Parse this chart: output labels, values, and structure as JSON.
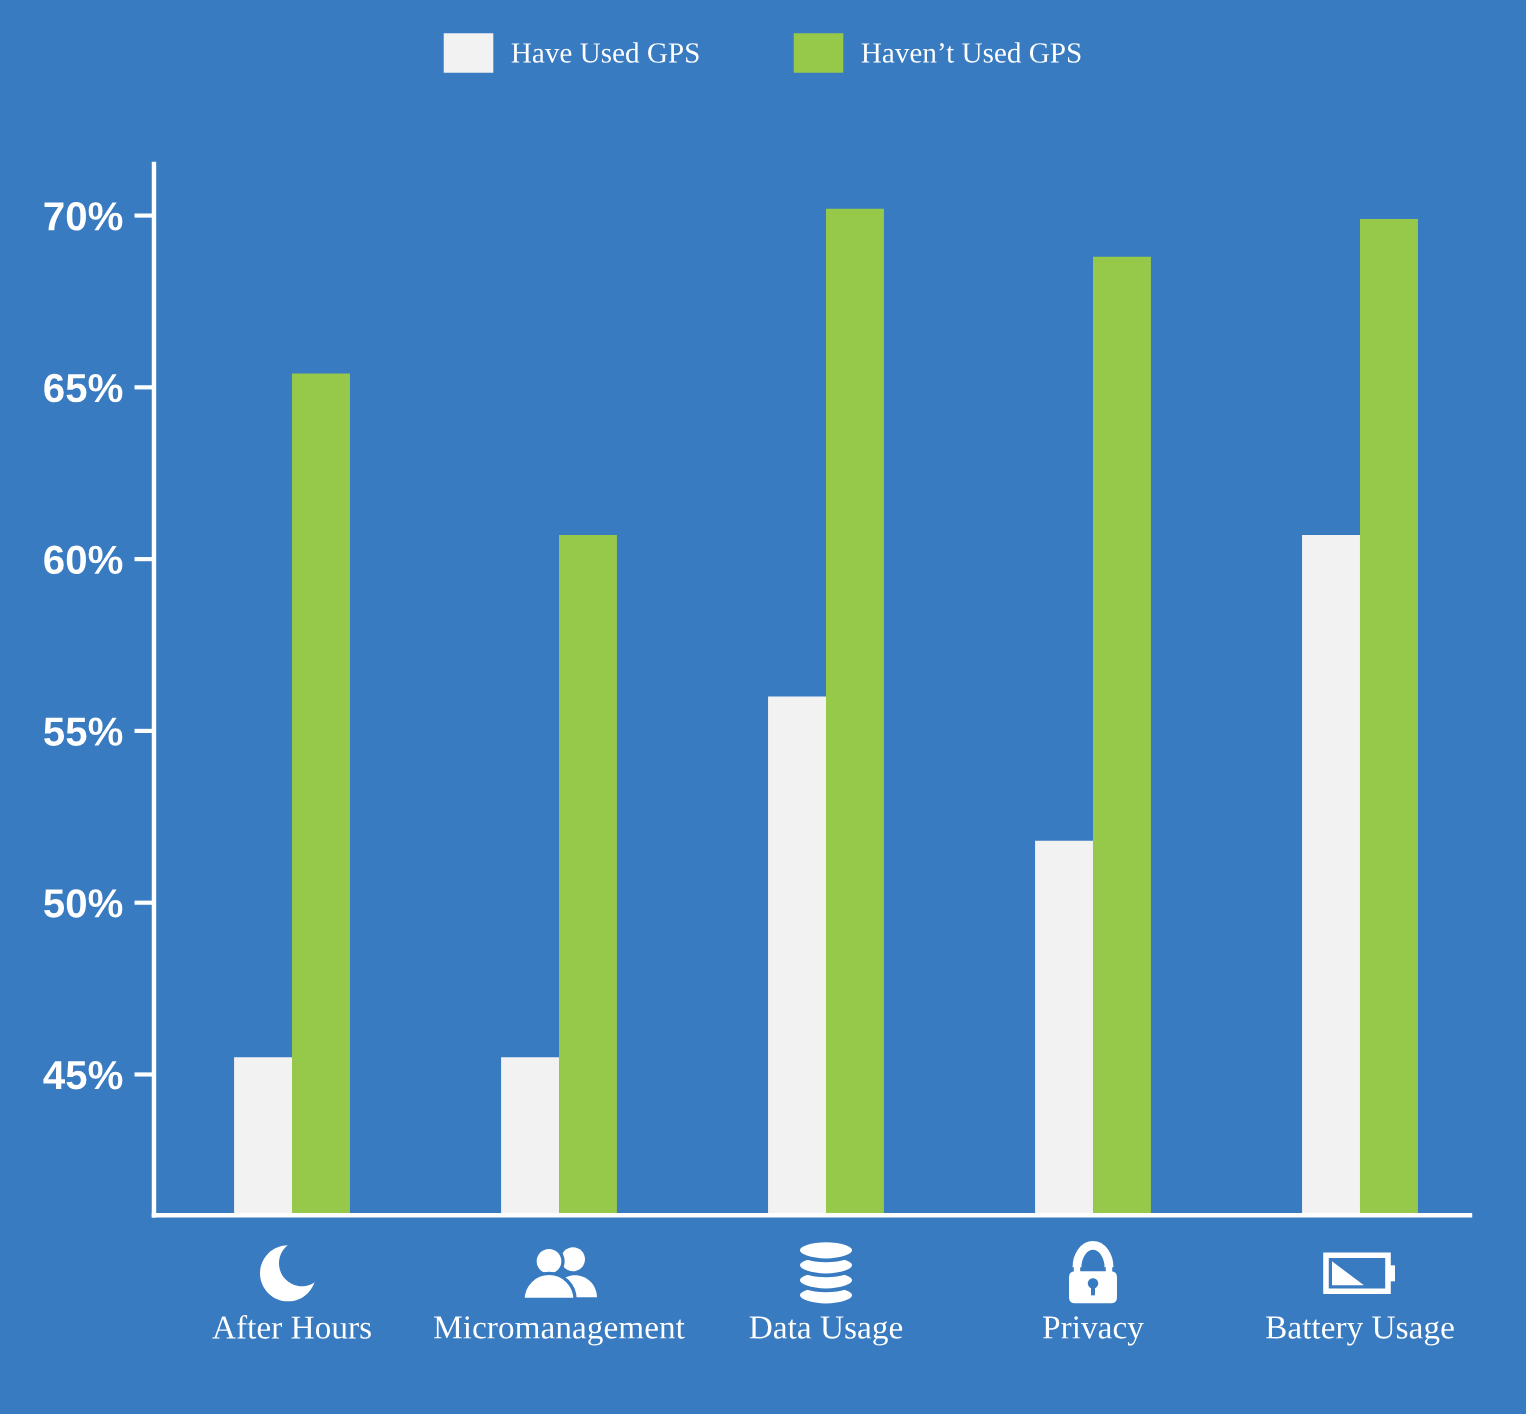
{
  "chart_data": {
    "type": "bar",
    "categories": [
      "After Hours",
      "Micromanagement",
      "Data Usage",
      "Privacy",
      "Battery Usage"
    ],
    "series": [
      {
        "name": "Have Used GPS",
        "color": "#f2f2f2",
        "values": [
          45.5,
          45.5,
          56.0,
          51.8,
          60.7
        ]
      },
      {
        "name": "Haven’t Used GPS",
        "color": "#96c84a",
        "values": [
          65.4,
          60.7,
          70.2,
          68.8,
          69.9
        ]
      }
    ],
    "ylim": [
      40.9,
      71.5
    ],
    "yticks": [
      {
        "value": 45,
        "label": "45%"
      },
      {
        "value": 50,
        "label": "50%"
      },
      {
        "value": 55,
        "label": "55%"
      },
      {
        "value": 60,
        "label": "60%"
      },
      {
        "value": 65,
        "label": "65%"
      },
      {
        "value": 70,
        "label": "70%"
      }
    ],
    "legend": "top"
  }
}
